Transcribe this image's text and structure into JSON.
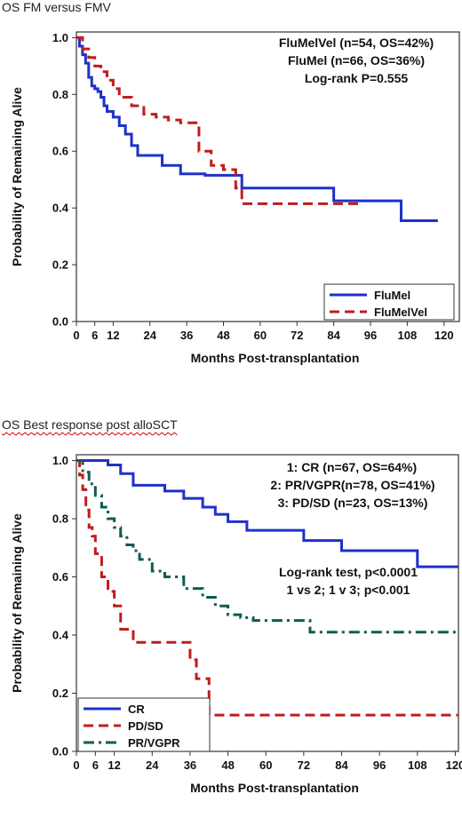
{
  "chart_data": [
    {
      "type": "line",
      "step": true,
      "title": "OS FM versus FMV",
      "xlabel": "Months Post-transplantation",
      "ylabel": "Probability of Remaining Alive",
      "xlim": [
        0,
        125
      ],
      "ylim": [
        0,
        1.02
      ],
      "xticks": [
        0,
        6,
        12,
        24,
        36,
        48,
        60,
        72,
        84,
        96,
        108,
        120
      ],
      "yticks": [
        0.0,
        0.2,
        0.4,
        0.6,
        0.8,
        1.0
      ],
      "annotations": [
        "FluMelVel (n=54, OS=42%)",
        "FluMel (n=66, OS=36%)",
        "Log-rank P=0.555"
      ],
      "legend_position": "bottom-right",
      "series": [
        {
          "name": "FluMel",
          "color": "#1f31c8",
          "dash": "solid",
          "x": [
            0,
            1,
            2,
            3,
            4,
            5,
            6,
            7,
            8,
            9,
            10,
            12,
            14,
            16,
            18,
            20,
            28,
            34,
            42,
            54,
            84,
            106,
            118
          ],
          "y": [
            1.0,
            0.97,
            0.94,
            0.91,
            0.86,
            0.83,
            0.82,
            0.81,
            0.79,
            0.76,
            0.74,
            0.72,
            0.69,
            0.66,
            0.62,
            0.585,
            0.55,
            0.52,
            0.515,
            0.47,
            0.425,
            0.355,
            0.355
          ]
        },
        {
          "name": "FluMelVel",
          "color": "#c01c1c",
          "dash": "dashed",
          "x": [
            0,
            2,
            4,
            6,
            8,
            10,
            12,
            14,
            18,
            22,
            26,
            30,
            34,
            40,
            44,
            48,
            52,
            54,
            92
          ],
          "y": [
            1.0,
            0.96,
            0.93,
            0.9,
            0.88,
            0.85,
            0.82,
            0.79,
            0.76,
            0.73,
            0.72,
            0.71,
            0.7,
            0.6,
            0.55,
            0.535,
            0.47,
            0.415,
            0.415
          ]
        }
      ]
    },
    {
      "type": "line",
      "step": true,
      "title": "OS Best response post alloSCT",
      "xlabel": "Months Post-transplantation",
      "ylabel": "Probability of Remaining Alive",
      "xlim": [
        0,
        121
      ],
      "ylim": [
        0,
        1.02
      ],
      "xticks": [
        0,
        6,
        12,
        24,
        36,
        48,
        60,
        72,
        84,
        96,
        108,
        120
      ],
      "yticks": [
        0.0,
        0.2,
        0.4,
        0.6,
        0.8,
        1.0
      ],
      "annotations": [
        "1: CR (n=67, OS=64%)",
        "2: PR/VGPR(n=78, OS=41%)",
        "3: PD/SD (n=23, OS=13%)",
        "Log-rank test, p<0.0001",
        "1 vs 2; 1 v 3; p<0.001"
      ],
      "legend_position": "bottom-left",
      "series": [
        {
          "name": "CR",
          "color": "#1f31c8",
          "dash": "solid",
          "x": [
            0,
            10,
            14,
            18,
            28,
            34,
            40,
            44,
            48,
            54,
            72,
            84,
            108,
            121
          ],
          "y": [
            1.0,
            0.985,
            0.955,
            0.915,
            0.895,
            0.87,
            0.84,
            0.815,
            0.79,
            0.76,
            0.725,
            0.69,
            0.635,
            0.635
          ]
        },
        {
          "name": "PD/SD",
          "color": "#c01c1c",
          "dash": "dashed",
          "x": [
            0,
            1,
            2,
            3,
            4,
            5,
            6,
            8,
            10,
            12,
            14,
            18,
            36,
            38,
            40,
            42,
            121
          ],
          "y": [
            1.0,
            0.95,
            0.9,
            0.83,
            0.77,
            0.74,
            0.68,
            0.6,
            0.55,
            0.5,
            0.42,
            0.375,
            0.315,
            0.25,
            0.25,
            0.125,
            0.125
          ]
        },
        {
          "name": "PR/VGPR",
          "color": "#0f5c52",
          "dash": "dashdot",
          "x": [
            0,
            2,
            4,
            6,
            8,
            10,
            12,
            14,
            16,
            18,
            20,
            24,
            28,
            34,
            40,
            44,
            48,
            52,
            56,
            62,
            68,
            74,
            121
          ],
          "y": [
            1.0,
            0.96,
            0.92,
            0.88,
            0.84,
            0.8,
            0.77,
            0.74,
            0.71,
            0.69,
            0.66,
            0.62,
            0.6,
            0.56,
            0.53,
            0.5,
            0.47,
            0.46,
            0.45,
            0.45,
            0.45,
            0.41,
            0.41
          ]
        }
      ]
    }
  ]
}
